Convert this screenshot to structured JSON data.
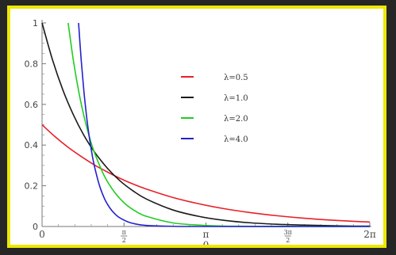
{
  "chart_data": {
    "type": "line",
    "title": "",
    "xlabel": "θ",
    "ylabel": "",
    "xlim": [
      0,
      6.283185307179586
    ],
    "ylim": [
      0,
      1.0
    ],
    "x_ticks": [
      {
        "value": 0,
        "label": "0"
      },
      {
        "value": 1.5707963267948966,
        "label_num": "π",
        "label_den": "2"
      },
      {
        "value": 3.141592653589793,
        "label": "π"
      },
      {
        "value": 4.71238898038469,
        "label_num": "3π",
        "label_den": "2"
      },
      {
        "value": 6.283185307179586,
        "label": "2π"
      }
    ],
    "y_ticks": [
      {
        "value": 0,
        "label": "0"
      },
      {
        "value": 0.2,
        "label": "0.2"
      },
      {
        "value": 0.4,
        "label": "0.4"
      },
      {
        "value": 0.6,
        "label": "0.6"
      },
      {
        "value": 0.8,
        "label": "0.8"
      },
      {
        "value": 1.0,
        "label": "1"
      }
    ],
    "grid": false,
    "legend_position": "center",
    "series": [
      {
        "name": "λ=0.5",
        "color": "#e8202a",
        "x": [
          0,
          0.25,
          0.5,
          0.75,
          1.0,
          1.25,
          1.5,
          1.75,
          2.0,
          2.5,
          3.0,
          3.5,
          4.0,
          4.5,
          5.0,
          5.5,
          6.0,
          6.283
        ],
        "y": [
          0.5,
          0.441,
          0.389,
          0.344,
          0.303,
          0.268,
          0.236,
          0.208,
          0.184,
          0.143,
          0.112,
          0.087,
          0.068,
          0.053,
          0.041,
          0.032,
          0.025,
          0.022
        ]
      },
      {
        "name": "λ=1.0",
        "color": "#1a1a1a",
        "x": [
          0,
          0.2,
          0.4,
          0.6,
          0.8,
          1.0,
          1.25,
          1.5,
          1.75,
          2.0,
          2.5,
          3.0,
          3.5,
          4.0,
          4.5,
          5.0,
          5.5,
          6.0,
          6.283
        ],
        "y": [
          1.0,
          0.819,
          0.67,
          0.549,
          0.449,
          0.368,
          0.287,
          0.223,
          0.174,
          0.135,
          0.082,
          0.05,
          0.03,
          0.018,
          0.011,
          0.007,
          0.004,
          0.002,
          0.002
        ]
      },
      {
        "name": "λ=2.0",
        "color": "#22cc22",
        "x": [
          0.5,
          0.6,
          0.7,
          0.8,
          0.9,
          1.0,
          1.2,
          1.4,
          1.6,
          1.8,
          2.0,
          2.5,
          3.0,
          3.5,
          4.0,
          5.0,
          6.283
        ],
        "y": [
          1.0,
          0.816,
          0.667,
          0.546,
          0.447,
          0.366,
          0.245,
          0.165,
          0.11,
          0.074,
          0.05,
          0.018,
          0.007,
          0.002,
          0.001,
          0.0,
          0.0
        ]
      },
      {
        "name": "λ=4.0",
        "color": "#2222cc",
        "x": [
          0.7,
          0.75,
          0.8,
          0.85,
          0.9,
          0.95,
          1.0,
          1.1,
          1.2,
          1.3,
          1.4,
          1.5,
          1.7,
          2.0,
          2.5,
          3.0,
          6.283
        ],
        "y": [
          1.0,
          0.819,
          0.67,
          0.549,
          0.449,
          0.368,
          0.301,
          0.202,
          0.135,
          0.091,
          0.061,
          0.041,
          0.018,
          0.005,
          0.001,
          0.0,
          0.0
        ]
      }
    ]
  }
}
